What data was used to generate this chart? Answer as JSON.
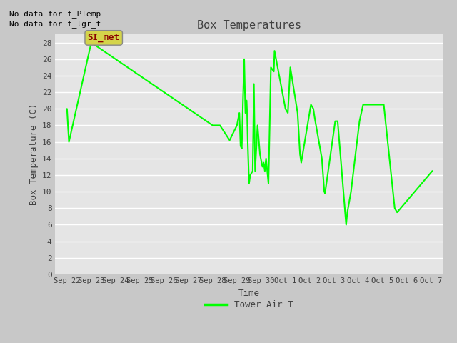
{
  "title": "Box Temperatures",
  "xlabel": "Time",
  "ylabel": "Box Temperature (C)",
  "ylim": [
    0,
    29
  ],
  "yticks": [
    0,
    2,
    4,
    6,
    8,
    10,
    12,
    14,
    16,
    18,
    20,
    22,
    24,
    26,
    28
  ],
  "line_color": "#00ff00",
  "line_width": 1.5,
  "bg_color": "#e5e5e5",
  "fig_bg_color": "#c8c8c8",
  "text_color": "#404040",
  "no_data_text": [
    "No data for f_PTemp",
    "No data for f_lgr_t"
  ],
  "annotation_text": "SI_met",
  "legend_label": "Tower Air T",
  "x_labels": [
    "Sep 22",
    "Sep 23",
    "Sep 24",
    "Sep 25",
    "Sep 26",
    "Sep 27",
    "Sep 28",
    "Sep 29",
    "Sep 30",
    "Oct 1",
    "Oct 2",
    "Oct 3",
    "Oct 4",
    "Oct 5",
    "Oct 6",
    "Oct 7"
  ],
  "x_num": [
    0,
    0.08,
    1.0,
    6.0,
    6.3,
    6.7,
    7.0,
    7.1,
    7.15,
    7.2,
    7.25,
    7.3,
    7.35,
    7.4,
    7.42,
    7.45,
    7.5,
    7.55,
    7.65,
    7.7,
    7.75,
    7.85,
    7.95,
    8.05,
    8.1,
    8.15,
    8.2,
    8.3,
    8.4,
    8.52,
    8.55,
    9.0,
    9.1,
    9.2,
    9.5,
    9.6,
    9.65,
    10.05,
    10.15,
    10.2,
    10.5,
    10.6,
    10.63,
    11.05,
    11.15,
    11.5,
    11.55,
    11.7,
    12.05,
    12.2,
    13.05,
    13.5,
    13.6,
    15.05
  ],
  "y_num": [
    20,
    16,
    28,
    18,
    18,
    16.2,
    18,
    19.5,
    15.5,
    15.2,
    21,
    26,
    19.5,
    21,
    19.5,
    15.5,
    11,
    12,
    12.5,
    23,
    12.5,
    18,
    14.5,
    13,
    13.5,
    12.5,
    14,
    11,
    25,
    24.5,
    27,
    20,
    19.5,
    25,
    19.5,
    14.5,
    13.5,
    20.5,
    20,
    19,
    14,
    10,
    9.8,
    18.5,
    18.5,
    6,
    7.5,
    10,
    18.5,
    20.5,
    20.5,
    8,
    7.5,
    12.5
  ],
  "xlim": [
    -0.5,
    15.5
  ]
}
